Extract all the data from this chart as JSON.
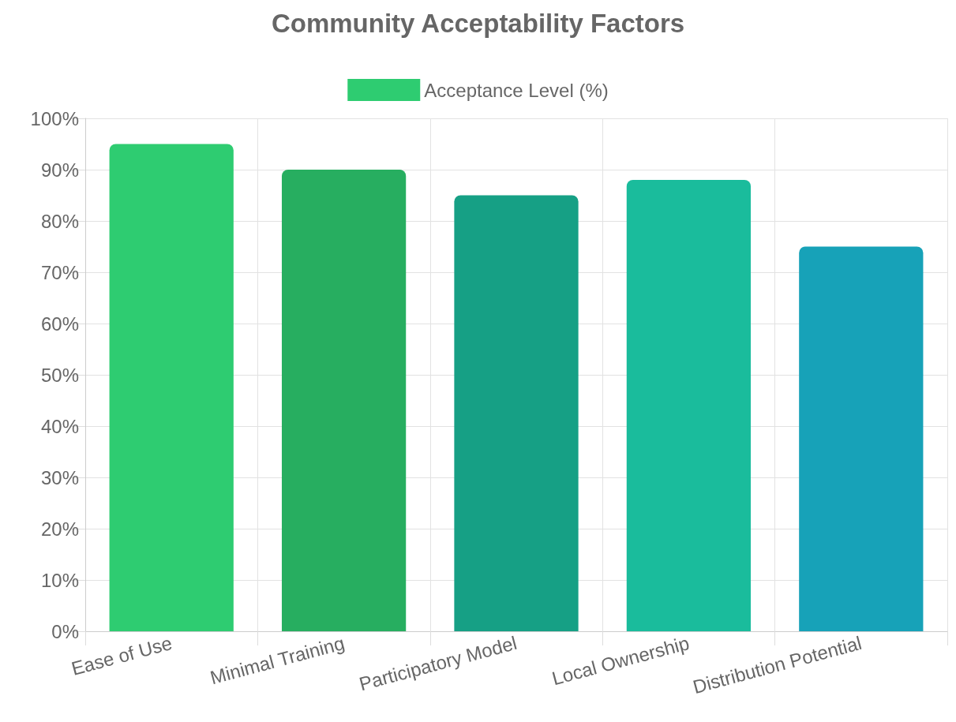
{
  "chart_data": {
    "type": "bar",
    "title": "Community Acceptability Factors",
    "categories": [
      "Ease of Use",
      "Minimal Training",
      "Participatory Model",
      "Local Ownership",
      "Distribution Potential"
    ],
    "series": [
      {
        "name": "Acceptance Level (%)",
        "color": "#2ecc71",
        "colors": [
          "#2ecc71",
          "#27ae60",
          "#16a085",
          "#1abc9c",
          "#17a2b8"
        ],
        "values": [
          95,
          90,
          85,
          88,
          75
        ]
      }
    ],
    "ylim": [
      0,
      100
    ],
    "yticks": [
      {
        "value": 0,
        "label": "0%"
      },
      {
        "value": 10,
        "label": "10%"
      },
      {
        "value": 20,
        "label": "20%"
      },
      {
        "value": 30,
        "label": "30%"
      },
      {
        "value": 40,
        "label": "40%"
      },
      {
        "value": 50,
        "label": "50%"
      },
      {
        "value": 60,
        "label": "60%"
      },
      {
        "value": 70,
        "label": "70%"
      },
      {
        "value": 80,
        "label": "80%"
      },
      {
        "value": 90,
        "label": "90%"
      },
      {
        "value": 100,
        "label": "100%"
      }
    ],
    "grid": true,
    "legend": "top"
  }
}
